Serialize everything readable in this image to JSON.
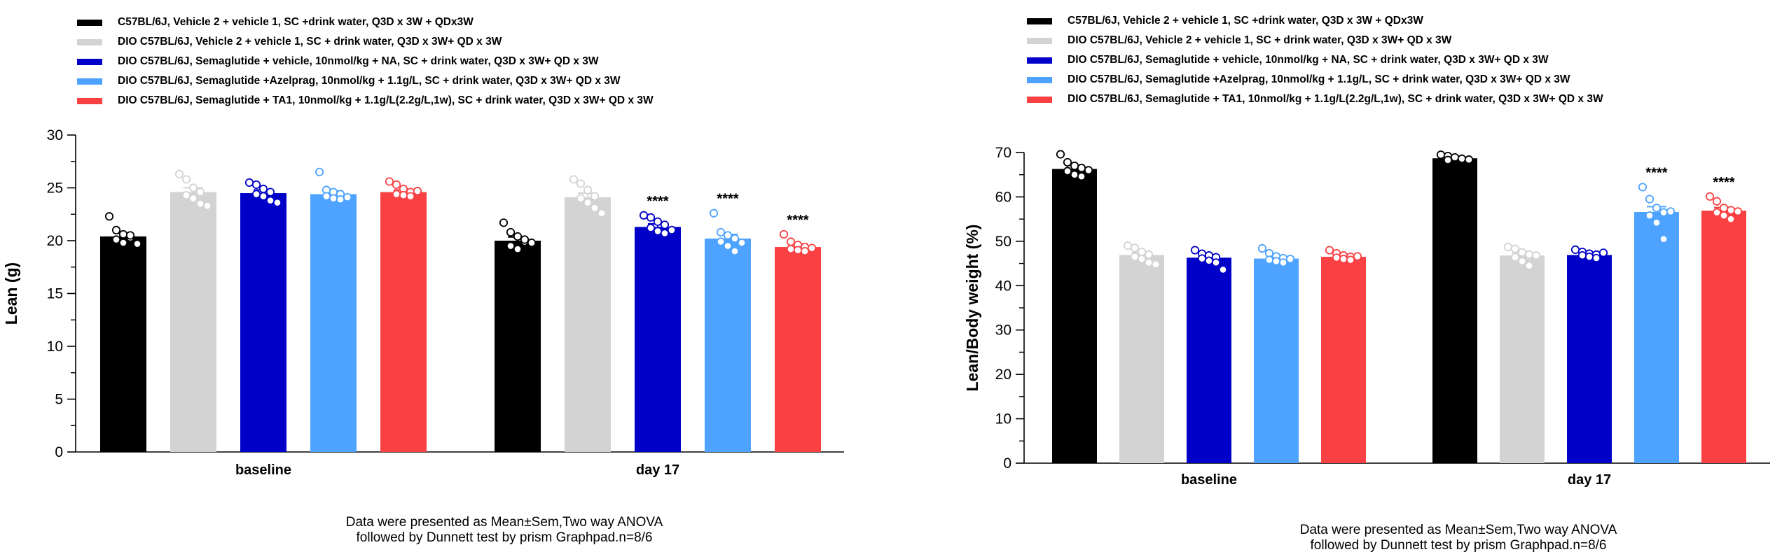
{
  "legend": [
    {
      "label": "C57BL/6J, Vehicle 2 + vehicle 1,  SC +drink water, Q3D x 3W + QDx3W",
      "color": "#000000"
    },
    {
      "label": "DIO C57BL/6J, Vehicle 2 + vehicle 1, SC + drink water, Q3D x 3W+ QD x 3W",
      "color": "#d3d3d3"
    },
    {
      "label": "DIO C57BL/6J, Semaglutide + vehicle, 10nmol/kg + NA, SC + drink water, Q3D x 3W+ QD x 3W",
      "color": "#0000c8"
    },
    {
      "label": "DIO C57BL/6J, Semaglutide +Azelprag, 10nmol/kg + 1.1g/L, SC + drink water, Q3D x 3W+ QD x 3W",
      "color": "#4da3ff"
    },
    {
      "label": "DIO C57BL/6J, Semaglutide + TA1, 10nmol/kg + 1.1g/L(2.2g/L,1w), SC + drink water, Q3D x 3W+ QD x 3W",
      "color": "#f94144"
    }
  ],
  "note": {
    "line1": "Data were presented as Mean±Sem,Two way ANOVA",
    "line2": "followed by Dunnett test by prism Graphpad.n=8/6"
  },
  "chart_data": [
    {
      "type": "bar",
      "title": "",
      "xlabel": "",
      "ylabel": "Lean (g)",
      "ylim": [
        0,
        30
      ],
      "yticks": [
        0,
        5,
        10,
        15,
        20,
        25,
        30
      ],
      "categories": [
        "baseline",
        "day 17"
      ],
      "grid": false,
      "legend_position": "top-left",
      "series": [
        {
          "name": "C57BL/6J, Vehicle 2 + vehicle 1,  SC +drink water, Q3D x 3W + QDx3W",
          "values": [
            20.4,
            20.0
          ],
          "sem": [
            0.3,
            0.35
          ],
          "points": [
            [
              22.3,
              21.0,
              20.6,
              20.3,
              20.1,
              19.8,
              20.5,
              19.7
            ],
            [
              21.7,
              20.8,
              20.4,
              19.9,
              19.5,
              19.2,
              20.1,
              19.8
            ]
          ]
        },
        {
          "name": "DIO C57BL/6J, Vehicle 2 + vehicle 1, SC + drink water, Q3D x 3W+ QD x 3W",
          "values": [
            24.6,
            24.1
          ],
          "sem": [
            0.4,
            0.4
          ],
          "points": [
            [
              26.3,
              25.8,
              25.0,
              24.6,
              24.3,
              24.0,
              23.5,
              23.3
            ],
            [
              25.8,
              25.4,
              24.8,
              24.2,
              24.0,
              23.6,
              23.1,
              22.6
            ]
          ]
        },
        {
          "name": "DIO C57BL/6J, Semaglutide + vehicle, 10nmol/kg + NA, SC + drink water, Q3D x 3W+ QD x 3W",
          "values": [
            24.5,
            21.3
          ],
          "sem": [
            0.3,
            0.3
          ],
          "points": [
            [
              25.5,
              25.3,
              24.9,
              24.6,
              24.4,
              24.2,
              23.8,
              23.6
            ],
            [
              22.4,
              22.2,
              21.8,
              21.5,
              21.2,
              20.9,
              20.7,
              21.0
            ]
          ]
        },
        {
          "name": "DIO C57BL/6J, Semaglutide +Azelprag, 10nmol/kg + 1.1g/L, SC + drink water, Q3D x 3W+ QD x 3W",
          "values": [
            24.4,
            20.2
          ],
          "sem": [
            0.3,
            0.4
          ],
          "points": [
            [
              26.5,
              24.8,
              24.6,
              24.4,
              24.2,
              24.0,
              23.9,
              24.1
            ],
            [
              22.6,
              20.8,
              20.5,
              20.2,
              19.9,
              19.5,
              19.0,
              19.8
            ]
          ]
        },
        {
          "name": "DIO C57BL/6J, Semaglutide + TA1, 10nmol/kg + 1.1g/L(2.2g/L,1w), SC + drink water, Q3D x 3W+ QD x 3W",
          "values": [
            24.6,
            19.4
          ],
          "sem": [
            0.2,
            0.3
          ],
          "points": [
            [
              25.6,
              25.3,
              24.9,
              24.6,
              24.4,
              24.3,
              24.2,
              24.7
            ],
            [
              20.6,
              19.9,
              19.6,
              19.4,
              19.2,
              19.1,
              19.0,
              19.3
            ]
          ]
        }
      ],
      "annotations": [
        {
          "category": "day 17",
          "series_index": 2,
          "text": "****"
        },
        {
          "category": "day 17",
          "series_index": 3,
          "text": "****"
        },
        {
          "category": "day 17",
          "series_index": 4,
          "text": "****"
        }
      ]
    },
    {
      "type": "bar",
      "title": "",
      "xlabel": "",
      "ylabel": "Lean/Body weight (%)",
      "ylim": [
        0,
        70
      ],
      "yticks": [
        0,
        10,
        20,
        30,
        40,
        50,
        60,
        70
      ],
      "categories": [
        "baseline",
        "day 17"
      ],
      "grid": false,
      "legend_position": "top-left",
      "series": [
        {
          "name": "C57BL/6J, Vehicle 2 + vehicle 1,  SC +drink water, Q3D x 3W + QDx3W",
          "values": [
            66.3,
            68.7
          ],
          "sem": [
            0.9,
            0.3
          ],
          "points": [
            [
              69.6,
              67.8,
              67.0,
              66.5,
              65.8,
              65.0,
              64.6,
              66.0
            ],
            [
              69.5,
              69.2,
              68.8,
              68.5,
              68.3,
              68.9,
              68.6,
              68.4
            ]
          ]
        },
        {
          "name": "DIO C57BL/6J, Vehicle 2 + vehicle 1, SC + drink water, Q3D x 3W+ QD x 3W",
          "values": [
            46.9,
            46.8
          ],
          "sem": [
            0.6,
            0.6
          ],
          "points": [
            [
              49.0,
              48.5,
              47.6,
              47.0,
              46.5,
              46.0,
              45.2,
              44.8
            ],
            [
              48.7,
              48.3,
              47.5,
              47.0,
              46.4,
              45.5,
              44.5,
              46.8
            ]
          ]
        },
        {
          "name": "DIO C57BL/6J, Semaglutide + vehicle, 10nmol/kg + NA, SC + drink water, Q3D x 3W+ QD x 3W",
          "values": [
            46.3,
            46.9
          ],
          "sem": [
            0.5,
            0.3
          ],
          "points": [
            [
              48.0,
              47.2,
              46.8,
              46.4,
              46.1,
              45.6,
              45.2,
              43.6
            ],
            [
              48.1,
              47.6,
              47.2,
              47.0,
              46.8,
              46.5,
              46.2,
              47.4
            ]
          ]
        },
        {
          "name": "DIO C57BL/6J, Semaglutide +Azelprag, 10nmol/kg + 1.1g/L, SC + drink water, Q3D x 3W+ QD x 3W",
          "values": [
            46.1,
            56.6
          ],
          "sem": [
            0.4,
            1.2
          ],
          "points": [
            [
              48.4,
              47.3,
              46.6,
              46.2,
              45.8,
              45.5,
              45.2,
              46.0
            ],
            [
              62.2,
              59.5,
              57.5,
              56.5,
              55.8,
              54.2,
              50.5,
              56.7
            ]
          ]
        },
        {
          "name": "DIO C57BL/6J, Semaglutide + TA1, 10nmol/kg + 1.1g/L(2.2g/L,1w), SC + drink water, Q3D x 3W+ QD x 3W",
          "values": [
            46.5,
            56.9
          ],
          "sem": [
            0.3,
            0.7
          ],
          "points": [
            [
              48.0,
              47.3,
              46.8,
              46.5,
              46.3,
              46.0,
              45.8,
              46.6
            ],
            [
              60.1,
              59.0,
              57.5,
              57.0,
              56.5,
              55.8,
              55.0,
              56.7
            ]
          ]
        }
      ],
      "annotations": [
        {
          "category": "day 17",
          "series_index": 3,
          "text": "****"
        },
        {
          "category": "day 17",
          "series_index": 4,
          "text": "****"
        }
      ]
    }
  ]
}
